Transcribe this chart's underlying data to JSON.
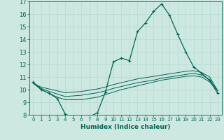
{
  "xlabel": "Humidex (Indice chaleur)",
  "bg_color": "#cce8e0",
  "grid_color": "#aaddcc",
  "line_color": "#006655",
  "xlim": [
    -0.5,
    23.5
  ],
  "ylim": [
    8,
    17
  ],
  "xticks": [
    0,
    1,
    2,
    3,
    4,
    5,
    6,
    7,
    8,
    9,
    10,
    11,
    12,
    13,
    14,
    15,
    16,
    17,
    18,
    19,
    20,
    21,
    22,
    23
  ],
  "yticks": [
    8,
    9,
    10,
    11,
    12,
    13,
    14,
    15,
    16,
    17
  ],
  "x": [
    0,
    1,
    2,
    3,
    4,
    5,
    6,
    7,
    8,
    9,
    10,
    11,
    12,
    13,
    14,
    15,
    16,
    17,
    18,
    19,
    20,
    21,
    22,
    23
  ],
  "line1": [
    10.6,
    10.0,
    9.7,
    9.3,
    8.05,
    7.8,
    7.75,
    7.85,
    8.15,
    9.8,
    12.2,
    12.5,
    12.3,
    14.6,
    15.3,
    16.2,
    16.8,
    15.9,
    14.4,
    13.0,
    11.8,
    11.3,
    10.7,
    9.7
  ],
  "line2": [
    10.5,
    10.0,
    9.7,
    9.4,
    9.2,
    9.2,
    9.2,
    9.3,
    9.4,
    9.6,
    9.8,
    10.0,
    10.15,
    10.3,
    10.45,
    10.6,
    10.75,
    10.85,
    10.95,
    11.05,
    11.1,
    11.0,
    10.6,
    9.9
  ],
  "line3": [
    10.5,
    10.2,
    10.05,
    9.9,
    9.75,
    9.8,
    9.85,
    9.95,
    10.05,
    10.2,
    10.4,
    10.55,
    10.7,
    10.85,
    10.95,
    11.05,
    11.15,
    11.25,
    11.35,
    11.45,
    11.5,
    11.35,
    11.0,
    9.9
  ],
  "line4": [
    10.5,
    10.1,
    9.85,
    9.65,
    9.45,
    9.5,
    9.55,
    9.65,
    9.75,
    9.9,
    10.1,
    10.25,
    10.4,
    10.55,
    10.65,
    10.75,
    10.9,
    11.0,
    11.1,
    11.2,
    11.3,
    11.15,
    10.8,
    9.9
  ]
}
